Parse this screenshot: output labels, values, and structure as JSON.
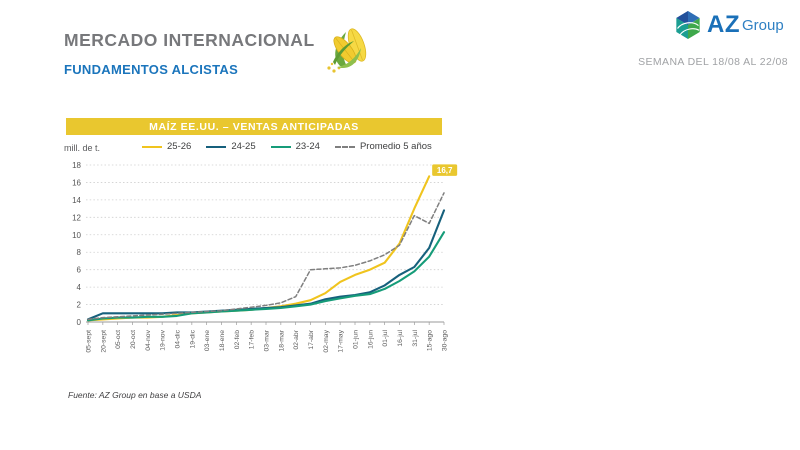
{
  "header": {
    "title": "MERCADO INTERNACIONAL",
    "subtitle": "FUNDAMENTOS ALCISTAS",
    "week_label": "SEMANA DEL 18/08 AL 22/08"
  },
  "logo": {
    "text_primary": "AZ",
    "text_secondary": "Group"
  },
  "chart_banner": "MAÍZ EE.UU. – VENTAS ANTICIPADAS",
  "footnote": "Fuente: AZ Group en base a USDA",
  "colors": {
    "banner_yellow": "#e9c72f",
    "title_gray": "#77787b",
    "brand_blue": "#1b75bc"
  },
  "chart_data": {
    "type": "line",
    "title": "MAÍZ EE.UU. – VENTAS ANTICIPADAS",
    "ylabel": "mill. de t.",
    "ylim": [
      0,
      18
    ],
    "ytick_step": 2,
    "grid": true,
    "legend_position": "top",
    "x": [
      "05-sept",
      "20-sept",
      "05-oct",
      "20-oct",
      "04-nov",
      "19-nov",
      "04-dic",
      "19-dic",
      "03-ene",
      "18-ene",
      "02-feb",
      "17-feb",
      "03-mar",
      "18-mar",
      "02-abr",
      "17-abr",
      "02-may",
      "17-may",
      "01-jun",
      "16-jun",
      "01-jul",
      "16-jul",
      "31-jul",
      "15-ago",
      "30-ago"
    ],
    "series": [
      {
        "name": "25-26",
        "color": "#f0c41e",
        "style": "solid",
        "values": [
          0.2,
          0.3,
          0.4,
          0.5,
          0.5,
          0.6,
          0.8,
          1.0,
          1.1,
          1.2,
          1.3,
          1.4,
          1.6,
          1.8,
          2.1,
          2.5,
          3.3,
          4.6,
          5.4,
          6.0,
          6.8,
          9.0,
          13.0,
          16.7,
          null
        ]
      },
      {
        "name": "24-25",
        "color": "#16607c",
        "style": "solid",
        "values": [
          0.3,
          1.0,
          1.0,
          1.0,
          1.0,
          1.0,
          1.1,
          1.1,
          1.2,
          1.3,
          1.4,
          1.5,
          1.6,
          1.7,
          1.9,
          2.1,
          2.6,
          2.9,
          3.1,
          3.4,
          4.2,
          5.4,
          6.3,
          8.5,
          12.8
        ]
      },
      {
        "name": "23-24",
        "color": "#169c79",
        "style": "solid",
        "values": [
          0.2,
          0.4,
          0.5,
          0.5,
          0.6,
          0.6,
          0.7,
          1.0,
          1.1,
          1.2,
          1.3,
          1.4,
          1.5,
          1.6,
          1.8,
          2.0,
          2.4,
          2.7,
          3.0,
          3.2,
          3.8,
          4.7,
          5.8,
          7.5,
          10.3
        ]
      },
      {
        "name": "Promedio 5 años",
        "color": "#7f7f7f",
        "style": "dashed",
        "values": [
          0.3,
          0.5,
          0.6,
          0.7,
          0.8,
          0.9,
          1.0,
          1.1,
          1.2,
          1.3,
          1.5,
          1.7,
          1.9,
          2.2,
          2.9,
          6.0,
          6.1,
          6.2,
          6.5,
          7.0,
          7.7,
          8.8,
          12.2,
          11.3,
          14.8
        ]
      }
    ],
    "annotation": {
      "text": "16,7",
      "series": "25-26",
      "value": 16.7,
      "x_label": "15-ago",
      "bg": "#e9c72f"
    }
  }
}
